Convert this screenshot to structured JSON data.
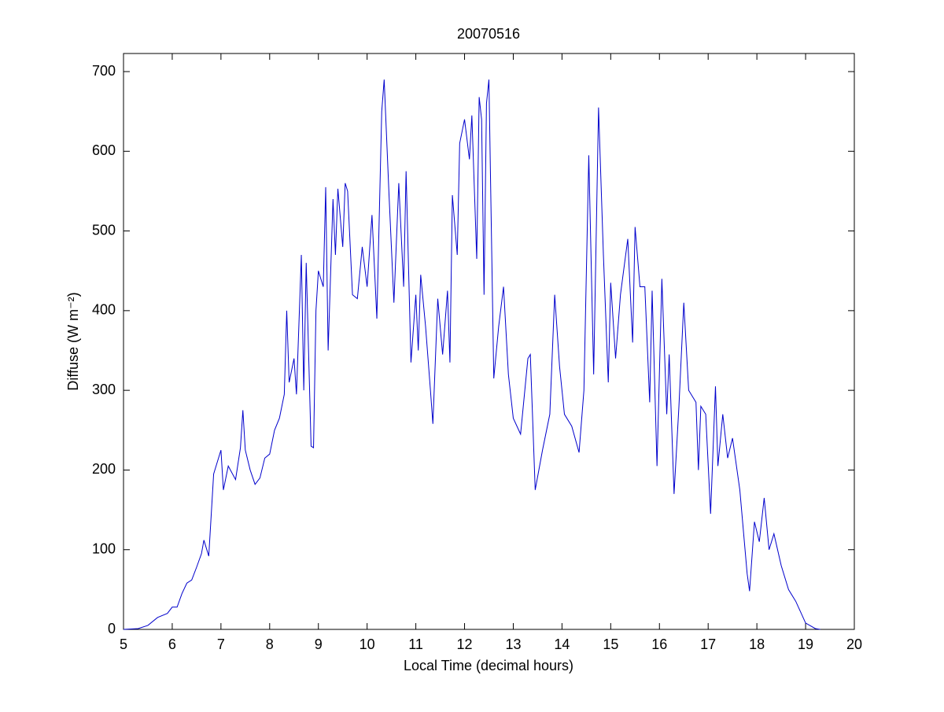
{
  "chart_data": {
    "type": "line",
    "title": "20070516",
    "x_label": "Local Time (decimal hours)",
    "y_label": "Diffuse (W m⁻²)",
    "xlim": [
      5,
      20
    ],
    "ylim": [
      0,
      700
    ],
    "xticks": [
      5,
      6,
      7,
      8,
      9,
      10,
      11,
      12,
      13,
      14,
      15,
      16,
      17,
      18,
      19,
      20
    ],
    "yticks": [
      0,
      100,
      200,
      300,
      400,
      500,
      600,
      700
    ],
    "grid": false,
    "series": [
      {
        "color": "#0000cc",
        "x": [
          5.0,
          5.3,
          5.5,
          5.7,
          5.9,
          6.0,
          6.1,
          6.2,
          6.3,
          6.4,
          6.5,
          6.6,
          6.65,
          6.75,
          6.85,
          6.95,
          7.0,
          7.05,
          7.15,
          7.3,
          7.4,
          7.45,
          7.5,
          7.6,
          7.7,
          7.8,
          7.9,
          8.0,
          8.1,
          8.2,
          8.3,
          8.35,
          8.4,
          8.5,
          8.55,
          8.65,
          8.7,
          8.75,
          8.85,
          8.9,
          8.95,
          9.0,
          9.1,
          9.15,
          9.2,
          9.3,
          9.35,
          9.4,
          9.5,
          9.55,
          9.6,
          9.7,
          9.8,
          9.9,
          10.0,
          10.1,
          10.2,
          10.3,
          10.35,
          10.45,
          10.55,
          10.65,
          10.75,
          10.8,
          10.9,
          11.0,
          11.05,
          11.1,
          11.2,
          11.3,
          11.35,
          11.45,
          11.55,
          11.65,
          11.7,
          11.75,
          11.85,
          11.9,
          11.95,
          12.0,
          12.1,
          12.15,
          12.25,
          12.3,
          12.35,
          12.4,
          12.45,
          12.5,
          12.6,
          12.7,
          12.8,
          12.9,
          13.0,
          13.15,
          13.3,
          13.35,
          13.45,
          13.6,
          13.75,
          13.85,
          13.95,
          14.05,
          14.2,
          14.35,
          14.45,
          14.55,
          14.65,
          14.75,
          14.85,
          14.95,
          15.0,
          15.1,
          15.2,
          15.35,
          15.45,
          15.5,
          15.6,
          15.7,
          15.8,
          15.85,
          15.95,
          16.05,
          16.15,
          16.2,
          16.3,
          16.4,
          16.5,
          16.6,
          16.75,
          16.8,
          16.85,
          16.95,
          17.05,
          17.15,
          17.2,
          17.3,
          17.4,
          17.5,
          17.65,
          17.8,
          17.85,
          17.95,
          18.05,
          18.15,
          18.25,
          18.35,
          18.5,
          18.65,
          18.8,
          19.0,
          19.2,
          19.3
        ],
        "values": [
          0,
          1,
          5,
          15,
          20,
          28,
          28,
          45,
          58,
          62,
          78,
          95,
          112,
          92,
          195,
          215,
          225,
          175,
          205,
          188,
          228,
          275,
          225,
          200,
          182,
          190,
          215,
          220,
          250,
          265,
          295,
          400,
          310,
          340,
          295,
          470,
          300,
          460,
          230,
          228,
          400,
          450,
          430,
          555,
          350,
          540,
          470,
          553,
          480,
          560,
          550,
          420,
          415,
          480,
          430,
          520,
          390,
          650,
          690,
          545,
          410,
          560,
          430,
          575,
          335,
          420,
          350,
          445,
          380,
          300,
          258,
          415,
          345,
          425,
          335,
          545,
          470,
          610,
          625,
          640,
          590,
          645,
          465,
          668,
          640,
          420,
          660,
          690,
          315,
          380,
          430,
          320,
          265,
          245,
          340,
          345,
          175,
          225,
          270,
          420,
          330,
          270,
          255,
          222,
          300,
          595,
          320,
          655,
          470,
          310,
          435,
          340,
          420,
          490,
          360,
          505,
          430,
          430,
          285,
          425,
          205,
          440,
          270,
          345,
          170,
          280,
          410,
          300,
          285,
          200,
          280,
          270,
          145,
          305,
          205,
          270,
          215,
          240,
          175,
          70,
          48,
          135,
          110,
          165,
          100,
          120,
          80,
          50,
          35,
          8,
          1,
          0
        ]
      }
    ]
  }
}
